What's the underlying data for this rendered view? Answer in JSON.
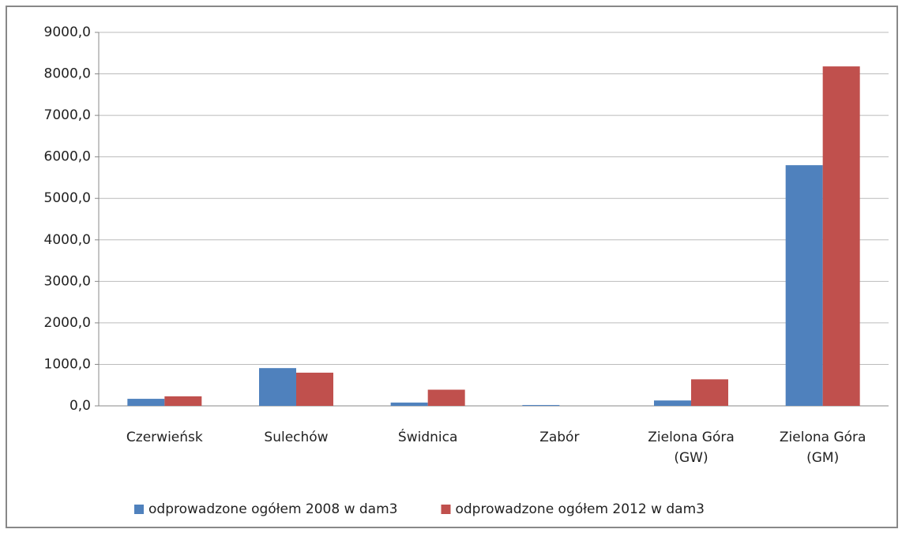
{
  "chart_data": {
    "type": "bar",
    "categories": [
      "Czerwieńsk",
      "Sulechów",
      "Świdnica",
      "Zabór",
      "Zielona Góra (GW)",
      "Zielona Góra (GM)"
    ],
    "series": [
      {
        "name": "odprowadzone ogółem 2008 w dam3",
        "color": "#4f81bd",
        "values": [
          170,
          910,
          80,
          20,
          130,
          5800
        ]
      },
      {
        "name": "odprowadzone ogółem 2012 w dam3",
        "color": "#c0504d",
        "values": [
          230,
          800,
          390,
          0,
          640,
          8180
        ]
      }
    ],
    "ylim": [
      0,
      9000
    ],
    "yticks": [
      {
        "value": 0,
        "label": "0,0"
      },
      {
        "value": 1000,
        "label": "1000,0"
      },
      {
        "value": 2000,
        "label": "2000,0"
      },
      {
        "value": 3000,
        "label": "3000,0"
      },
      {
        "value": 4000,
        "label": "4000,0"
      },
      {
        "value": 5000,
        "label": "5000,0"
      },
      {
        "value": 6000,
        "label": "6000,0"
      },
      {
        "value": 7000,
        "label": "7000,0"
      },
      {
        "value": 8000,
        "label": "8000,0"
      },
      {
        "value": 9000,
        "label": "9000,0"
      }
    ],
    "grid": true,
    "legend": "bottom"
  }
}
